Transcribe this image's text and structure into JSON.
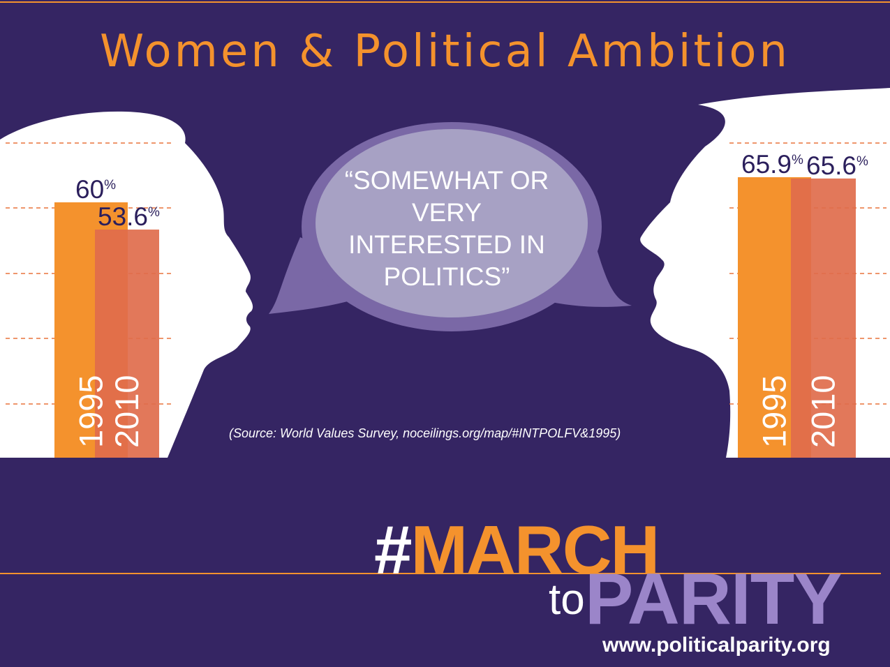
{
  "title": "Women & Political Ambition",
  "quote": "“SOMEWHAT OR VERY INTERESTED IN POLITICS”",
  "source": "(Source: World Values Survey, noceilings.org/map/#INTPOLFV&1995)",
  "campaign": {
    "hash": "#",
    "march": "MARCH",
    "to": "to",
    "parity": "PARITY"
  },
  "website": "www.politicalparity.org",
  "colors": {
    "background": "#352563",
    "bar_1995": "#f4922d",
    "bar_2010": "#e06c4c",
    "accent": "#f4922d",
    "parity": "#9b85c9"
  },
  "chart_data": [
    {
      "type": "bar",
      "categories": [
        "1995",
        "2010"
      ],
      "values": [
        60,
        53.6
      ],
      "value_labels": [
        "60",
        "53.6"
      ],
      "unit": "%",
      "ylim": [
        0,
        100
      ]
    },
    {
      "type": "bar",
      "categories": [
        "1995",
        "2010"
      ],
      "values": [
        65.9,
        65.6
      ],
      "value_labels": [
        "65.9",
        "65.6"
      ],
      "unit": "%",
      "ylim": [
        0,
        100
      ]
    }
  ]
}
